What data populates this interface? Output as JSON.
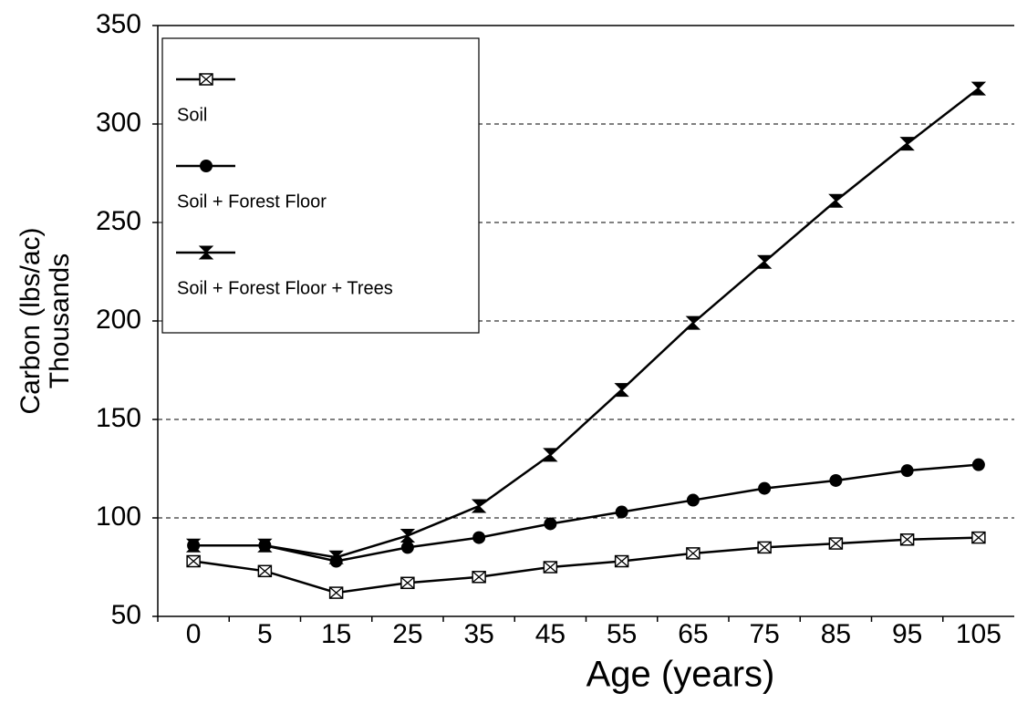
{
  "chart_data": {
    "type": "line",
    "xlabel": "Age (years)",
    "ylabel": [
      "Carbon (lbs/ac)",
      "Thousands"
    ],
    "categories": [
      "0",
      "5",
      "15",
      "25",
      "35",
      "45",
      "55",
      "65",
      "75",
      "85",
      "95",
      "105"
    ],
    "series": [
      {
        "name": "Soil",
        "color": "#000000",
        "marker": "boxx",
        "values": [
          78,
          73,
          62,
          67,
          70,
          75,
          78,
          82,
          85,
          87,
          89,
          90
        ]
      },
      {
        "name": "Soil + Forest Floor",
        "color": "#000000",
        "marker": "circle",
        "values": [
          86,
          86,
          78,
          85,
          90,
          97,
          103,
          109,
          115,
          119,
          124,
          127
        ]
      },
      {
        "name": "Soil + Forest Floor + Trees",
        "color": "#000000",
        "marker": "bowtie",
        "values": [
          86,
          86,
          80,
          91,
          106,
          132,
          165,
          199,
          230,
          261,
          290,
          318
        ]
      }
    ],
    "ylim": [
      50,
      350
    ],
    "yticks": [
      50,
      100,
      150,
      200,
      250,
      300,
      350
    ],
    "grid": true,
    "legend": "upper left"
  }
}
